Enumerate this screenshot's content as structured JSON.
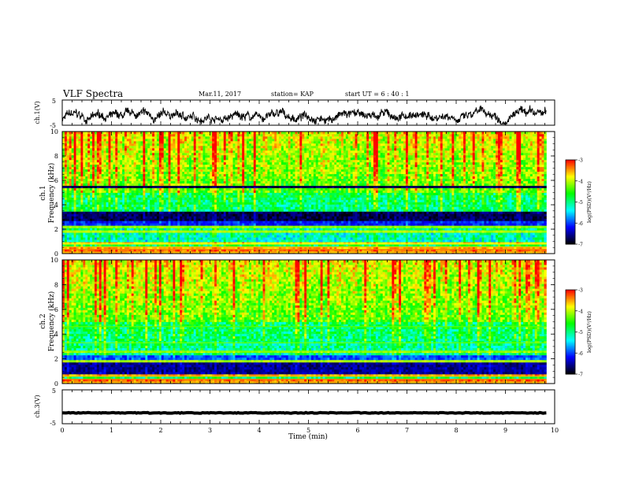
{
  "header": {
    "title": "VLF Spectra",
    "date": "Mar.11, 2017",
    "station": "station= KAP",
    "start": "start  UT =   6 : 40 : 1"
  },
  "chart_data": [
    {
      "type": "line",
      "panel": "ch1-waveform",
      "ylabel": "ch.1(V)",
      "ylim": [
        -5,
        5
      ],
      "yticks": [
        "5",
        "-5"
      ],
      "xlim": [
        0,
        10
      ],
      "duration_min": 9.83,
      "series": [
        {
          "color": "#000000",
          "amplitude_V": 2.5,
          "trend": [
            -2.0,
            2.5
          ]
        }
      ]
    },
    {
      "type": "heatmap",
      "panel": "ch1-spectrogram",
      "ylabel": "ch.1\nFrequency (kHz)",
      "ylim": [
        0,
        10
      ],
      "yticks": [
        "0",
        "2",
        "4",
        "6",
        "8",
        "10"
      ],
      "xlim": [
        0,
        10
      ],
      "duration_min": 9.83,
      "bands_kHz": [
        {
          "f": 0.1,
          "w": 0.12,
          "log": -3.6
        },
        {
          "f": 0.35,
          "w": 0.1,
          "log": -3.4
        },
        {
          "f": 0.55,
          "w": 0.1,
          "log": -3.6
        },
        {
          "f": 0.8,
          "w": 0.08,
          "log": -3.8
        },
        {
          "f": 1.8,
          "w": 0.08,
          "log": -4.1
        },
        {
          "f": 2.2,
          "w": 0.06,
          "log": -4.2
        },
        {
          "f": 3.05,
          "w": 0.5,
          "log": -6.8
        },
        {
          "f": 2.55,
          "w": 0.15,
          "log": -6.2
        },
        {
          "f": 5.5,
          "w": 0.06,
          "log": -6.8
        }
      ],
      "colorbar": {
        "label": "log(PSD)(V²/Hz)",
        "range": [
          -7,
          -3
        ],
        "ticks": [
          "-3",
          "-4",
          "-5",
          "-6",
          "-7"
        ],
        "colors": [
          "#ff0000",
          "#ffff00",
          "#00ff00",
          "#00ffff",
          "#0000ff",
          "#000000"
        ]
      }
    },
    {
      "type": "heatmap",
      "panel": "ch2-spectrogram",
      "ylabel": "ch.2\nFrequency (kHz)",
      "ylim": [
        0,
        10
      ],
      "yticks": [
        "0",
        "2",
        "4",
        "6",
        "8",
        "10"
      ],
      "xlim": [
        0,
        10
      ],
      "duration_min": 9.83,
      "bands_kHz": [
        {
          "f": 0.1,
          "w": 0.12,
          "log": -3.6
        },
        {
          "f": 0.35,
          "w": 0.1,
          "log": -3.4
        },
        {
          "f": 0.6,
          "w": 0.08,
          "log": -3.6
        },
        {
          "f": 1.8,
          "w": 0.08,
          "log": -4.1
        },
        {
          "f": 2.6,
          "w": 0.06,
          "log": -4.2
        },
        {
          "f": 3.3,
          "w": 0.06,
          "log": -4.2
        },
        {
          "f": 1.3,
          "w": 0.45,
          "log": -6.6
        },
        {
          "f": 2.15,
          "w": 0.2,
          "log": -6.0
        },
        {
          "f": 4.6,
          "w": 0.05,
          "log": -4.3
        }
      ],
      "colorbar": {
        "label": "log(PSD)(V²/Hz)",
        "range": [
          -7,
          -3
        ],
        "ticks": [
          "-3",
          "-4",
          "-5",
          "-6",
          "-7"
        ],
        "colors": [
          "#ff0000",
          "#ffff00",
          "#00ff00",
          "#00ffff",
          "#0000ff",
          "#000000"
        ]
      }
    },
    {
      "type": "line",
      "panel": "ch3-waveform",
      "ylabel": "ch.3(V)",
      "ylim": [
        -5,
        5
      ],
      "yticks": [
        "5",
        "-5"
      ],
      "xlim": [
        0,
        10
      ],
      "xlabel": "Time (min)",
      "xticks": [
        "0",
        "1",
        "2",
        "3",
        "4",
        "5",
        "6",
        "7",
        "8",
        "9",
        "10"
      ],
      "duration_min": 9.83,
      "series": [
        {
          "color": "#000000",
          "level_V": -1.8,
          "noise_V": 0.2
        }
      ]
    }
  ]
}
